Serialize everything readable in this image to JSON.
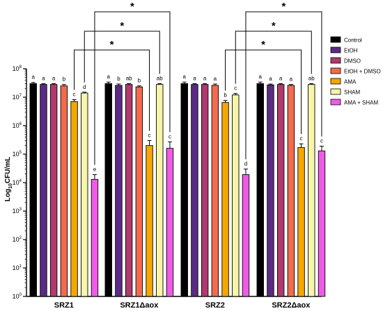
{
  "chart_data": {
    "type": "bar",
    "title": "",
    "ylabel": "Log10CFU/mL",
    "ylabel_parts": {
      "base": "Log",
      "sub": "10",
      "rest": "CFU/mL"
    },
    "yscale": "log",
    "ylim": [
      1,
      100000000
    ],
    "yticks": [
      {
        "value": 1,
        "base": "10",
        "exp": "0"
      },
      {
        "value": 10,
        "base": "10",
        "exp": "1"
      },
      {
        "value": 100,
        "base": "10",
        "exp": "2"
      },
      {
        "value": 1000,
        "base": "10",
        "exp": "3"
      },
      {
        "value": 10000,
        "base": "10",
        "exp": "4"
      },
      {
        "value": 100000,
        "base": "10",
        "exp": "5"
      },
      {
        "value": 1000000,
        "base": "10",
        "exp": "6"
      },
      {
        "value": 10000000,
        "base": "10",
        "exp": "7"
      },
      {
        "value": 100000000,
        "base": "10",
        "exp": "8"
      }
    ],
    "categories": [
      "SRZ1",
      "SRZ1Δaox",
      "SRZ2",
      "SRZ2Δaox"
    ],
    "legend_position": "right",
    "series": [
      {
        "name": "Control",
        "color": "#000000",
        "values": [
          30000000,
          30000000,
          30000000,
          30000000
        ],
        "errors": [
          3000000,
          4000000,
          4000000,
          4000000
        ],
        "letters": [
          "a",
          "a",
          "a",
          "a"
        ]
      },
      {
        "name": "EtOH",
        "color": "#5b2a86",
        "values": [
          28000000,
          26000000,
          28000000,
          27000000
        ],
        "errors": [
          2000000,
          3000000,
          2000000,
          2000000
        ],
        "letters": [
          "a",
          "b",
          "a",
          "a"
        ]
      },
      {
        "name": "DMSO",
        "color": "#b03a6e",
        "values": [
          28000000,
          28000000,
          28000000,
          28000000
        ],
        "errors": [
          2000000,
          2000000,
          2000000,
          2000000
        ],
        "letters": [
          "a",
          "ab",
          "a",
          "a"
        ]
      },
      {
        "name": "EtOH + DMSO",
        "color": "#f26b4e",
        "values": [
          25000000,
          23000000,
          26000000,
          26000000
        ],
        "errors": [
          3000000,
          2000000,
          3000000,
          2000000
        ],
        "letters": [
          "b",
          "b",
          "a",
          "a"
        ]
      },
      {
        "name": "AMA",
        "color": "#f5a700",
        "values": [
          7000000,
          200000,
          6500000,
          170000
        ],
        "errors": [
          1200000,
          100000,
          1200000,
          60000
        ],
        "letters": [
          "c",
          "c",
          "b",
          "c"
        ]
      },
      {
        "name": "SHAM",
        "color": "#f7f5a8",
        "values": [
          14000000,
          28000000,
          12000000,
          28000000
        ],
        "errors": [
          1000000,
          2000000,
          1500000,
          2000000
        ],
        "letters": [
          "d",
          "ab",
          "c",
          "ab"
        ]
      },
      {
        "name": "AMA + SHAM",
        "color": "#f05be5",
        "values": [
          13000,
          160000,
          19000,
          130000
        ],
        "errors": [
          6000,
          110000,
          11000,
          60000
        ],
        "letters": [
          "e",
          "c",
          "d",
          "c"
        ]
      }
    ],
    "significance": [
      {
        "from": [
          0,
          4
        ],
        "to": [
          1,
          4
        ],
        "label": "*"
      },
      {
        "from": [
          0,
          5
        ],
        "to": [
          1,
          5
        ],
        "label": "*"
      },
      {
        "from": [
          0,
          6
        ],
        "to": [
          1,
          6
        ],
        "label": "*"
      },
      {
        "from": [
          2,
          4
        ],
        "to": [
          3,
          4
        ],
        "label": "*"
      },
      {
        "from": [
          2,
          5
        ],
        "to": [
          3,
          5
        ],
        "label": "*"
      },
      {
        "from": [
          2,
          6
        ],
        "to": [
          3,
          6
        ],
        "label": "*"
      }
    ]
  }
}
